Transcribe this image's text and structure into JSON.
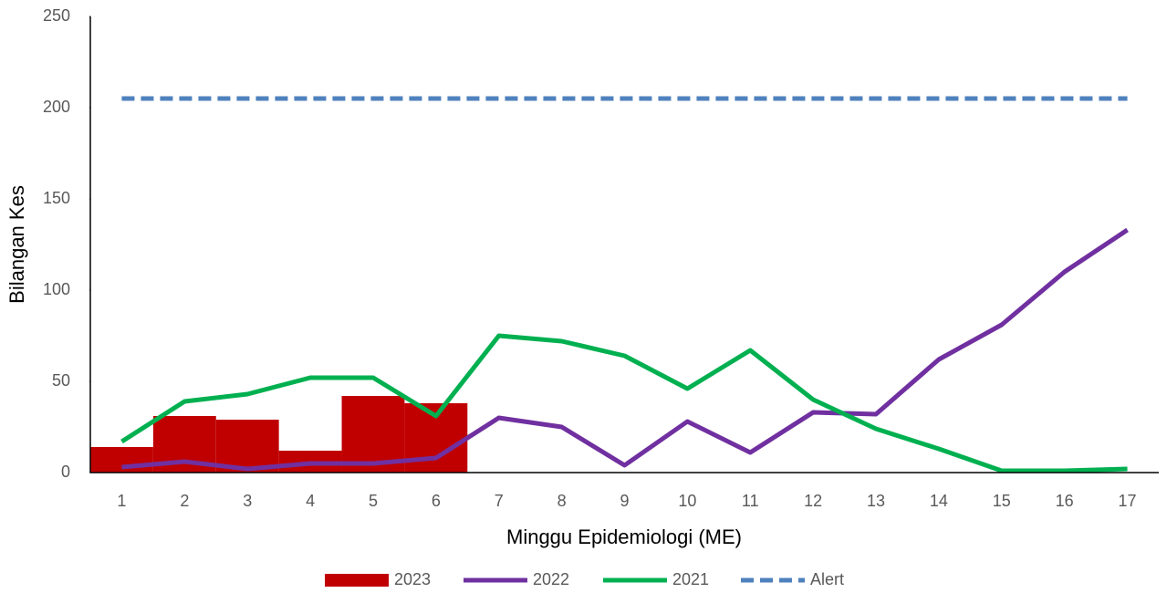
{
  "chart_data": {
    "type": "combo",
    "x_label": "Minggu Epidemiologi (ME)",
    "y_label": "Bilangan Kes",
    "categories": [
      "1",
      "2",
      "3",
      "4",
      "5",
      "6",
      "7",
      "8",
      "9",
      "10",
      "11",
      "12",
      "13",
      "14",
      "15",
      "16",
      "17"
    ],
    "ylim": [
      0,
      250
    ],
    "yticks": [
      0,
      50,
      100,
      150,
      200,
      250
    ],
    "grid": false,
    "legend": "bottom",
    "series": [
      {
        "name": "2023",
        "type": "bar",
        "color": "#c00000",
        "values": [
          14,
          31,
          29,
          12,
          42,
          38,
          null,
          null,
          null,
          null,
          null,
          null,
          null,
          null,
          null,
          null,
          null
        ]
      },
      {
        "name": "2022",
        "type": "line",
        "color": "#7030a0",
        "values": [
          3,
          6,
          2,
          5,
          5,
          8,
          30,
          25,
          4,
          28,
          11,
          33,
          32,
          62,
          81,
          110,
          133
        ]
      },
      {
        "name": "2021",
        "type": "line",
        "color": "#00b050",
        "values": [
          17,
          39,
          43,
          52,
          52,
          31,
          75,
          72,
          64,
          46,
          67,
          40,
          24,
          13,
          1,
          1,
          2
        ]
      },
      {
        "name": "Alert",
        "type": "line",
        "dashed": true,
        "color": "#4f81bd",
        "values": [
          205,
          205,
          205,
          205,
          205,
          205,
          205,
          205,
          205,
          205,
          205,
          205,
          205,
          205,
          205,
          205,
          205
        ]
      }
    ]
  }
}
